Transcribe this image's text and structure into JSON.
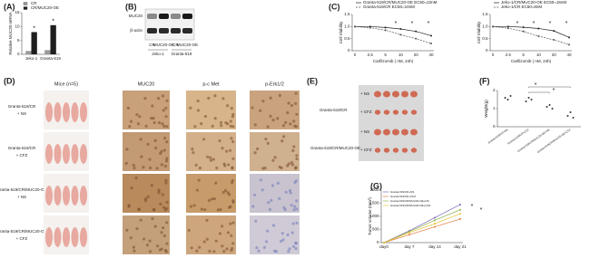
{
  "panel_labels": [
    "(A)",
    "(B)",
    "(C)",
    "(D)",
    "(E)",
    "(F)",
    "(G)"
  ],
  "blot": {
    "proteins": [
      "MUC20",
      "β-actin"
    ],
    "lanes": [
      "CR",
      "MUC20-OE",
      "CR",
      "MUC20-OE"
    ],
    "groups": [
      "Jeko-1",
      "Granta-519"
    ]
  },
  "mice": {
    "columns": [
      "Mice (n=5)",
      "MUC20",
      "p-c Met",
      "p-Erk1/2"
    ],
    "rows": [
      [
        "Granta-519/CR",
        "+ NS"
      ],
      [
        "Granta-519/CR",
        "+ CFZ"
      ],
      [
        "Granta-519/CR/MUC20-OE",
        "+ NS"
      ],
      [
        "Granta-519/CR/MUC20-OE",
        "+ CFZ"
      ]
    ]
  },
  "tumors": {
    "groups": [
      {
        "name": "Granta-519/CR",
        "rows": [
          "+ NS",
          "+ CFZ"
        ]
      },
      {
        "name": "Granta-519/CR/MUC20-OE",
        "rows": [
          "+ NS",
          "+ CFZ"
        ]
      }
    ]
  },
  "chart_data": [
    {
      "type": "bar",
      "ylabel": "Relative MUC20 mRNA",
      "categories": [
        "Jeko-1",
        "Granta-519"
      ],
      "series": [
        {
          "name": "CR",
          "color": "#9a9a9a",
          "values": [
            1.2,
            1.5
          ]
        },
        {
          "name": "CR/MUC20-OE",
          "color": "#1e1e1e",
          "values": [
            8,
            10.5
          ]
        }
      ],
      "ylim": [
        0,
        15
      ],
      "yticks": [
        0,
        5,
        10,
        15
      ],
      "annotations": [
        "*",
        "*"
      ]
    },
    {
      "type": "line",
      "ylabel": "Cell Viability",
      "xlabel": "Carfilzomib ( nM, 24h)",
      "categories": [
        "0",
        "2.5",
        "5",
        "10",
        "20",
        "40"
      ],
      "series": [
        {
          "name": "Granta-519/CR/MUC20-OE   EC50=22nM",
          "color": "#222222",
          "style": "solid",
          "values": [
            1.0,
            1.0,
            0.96,
            0.9,
            0.8,
            0.62
          ]
        },
        {
          "name": "Granta-519/CR   EC50=10nM",
          "color": "#555555",
          "style": "dashed",
          "values": [
            1.0,
            0.95,
            0.85,
            0.66,
            0.5,
            0.3
          ]
        }
      ],
      "ylim": [
        0,
        1.5
      ],
      "yticks": [
        0,
        0.5,
        {
          "value": 1,
          "label": "1.0"
        },
        1.5
      ],
      "annotations": [
        "*",
        "*",
        "*"
      ]
    },
    {
      "type": "line",
      "ylabel": "Cell Viability",
      "xlabel": "Carfilzomib ( nM, 24h)",
      "categories": [
        "0",
        "2.5",
        "5",
        "10",
        "20",
        "40"
      ],
      "series": [
        {
          "name": "Jeko-1/CR/MUC20-OE   EC50=16nM",
          "color": "#222222",
          "style": "solid",
          "values": [
            1.0,
            1.0,
            0.97,
            0.92,
            0.82,
            0.55
          ]
        },
        {
          "name": "Jeko-1/CR   EC50=8nM",
          "color": "#555555",
          "style": "dashed",
          "values": [
            1.0,
            0.93,
            0.8,
            0.6,
            0.45,
            0.25
          ]
        }
      ],
      "ylim": [
        0,
        1.5
      ],
      "yticks": [
        0,
        0.5,
        {
          "value": 1,
          "label": "1.0"
        },
        1.5
      ],
      "annotations": [
        "*",
        "*",
        "*",
        "*"
      ]
    },
    {
      "type": "dot",
      "ylabel": "Weight(g)",
      "color": "#333333",
      "categories": [
        "Granta-519/CR+NS",
        "Granta-519/CR+CFZ",
        "Granta-519/CR/MUC20-OE+NS",
        "Granta-519/CR/MUC20-OE+CFZ"
      ],
      "values": [
        [
          1.6,
          1.5,
          1.7
        ],
        [
          1.4,
          1.6,
          1.5
        ],
        [
          1.1,
          1.2,
          1.0
        ],
        [
          0.6,
          0.8,
          0.5
        ]
      ],
      "ylim": [
        0,
        2
      ],
      "yticks": [
        0,
        1,
        2
      ],
      "annotations": [
        "*",
        "*"
      ]
    },
    {
      "type": "line",
      "ylabel": "Tumor volume (mm³)",
      "categories": [
        "day0",
        "day 7",
        "day 14",
        "day 21"
      ],
      "series": [
        {
          "name": "Granta-519/CR+NS",
          "color": "#7b68b5",
          "style": "solid",
          "values": [
            0,
            450,
            950,
            1450
          ]
        },
        {
          "name": "Granta-519/CR+CFZ",
          "color": "#e07a3a",
          "style": "solid",
          "values": [
            0,
            300,
            600,
            900
          ]
        },
        {
          "name": "Granta-519/CR/MUC20-OE+NS",
          "color": "#8fb04a",
          "style": "solid",
          "values": [
            0,
            420,
            850,
            1250
          ]
        },
        {
          "name": "Granta-519/CR/MUC20-OE+CFZ",
          "color": "#e8c23a",
          "style": "solid",
          "values": [
            0,
            380,
            720,
            1100
          ]
        }
      ],
      "ylim": [
        0,
        2000
      ],
      "yticks": [
        0,
        500,
        1000,
        1500,
        2000
      ],
      "annotations": [
        "*",
        "*"
      ]
    }
  ]
}
